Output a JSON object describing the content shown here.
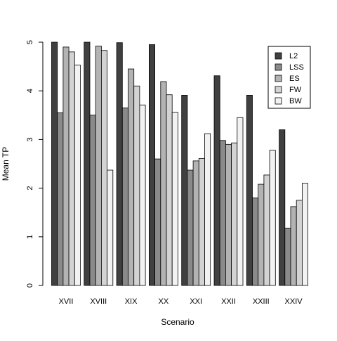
{
  "chart_data": {
    "type": "bar",
    "xlabel": "Scenario",
    "ylabel": "Mean TP",
    "ylim": [
      0,
      5
    ],
    "yticks": [
      0,
      1,
      2,
      3,
      4,
      5
    ],
    "grid": false,
    "legend_position": "top-right",
    "categories": [
      "XVII",
      "XVIII",
      "XIX",
      "XX",
      "XXI",
      "XXII",
      "XXIII",
      "XXIV"
    ],
    "series": [
      {
        "name": "L2",
        "color": "#404040",
        "values": [
          5.0,
          5.0,
          4.99,
          4.95,
          3.91,
          4.31,
          3.91,
          3.2
        ]
      },
      {
        "name": "LSS",
        "color": "#8a8a8a",
        "values": [
          3.55,
          3.5,
          3.65,
          2.6,
          2.37,
          2.98,
          1.8,
          1.18
        ]
      },
      {
        "name": "ES",
        "color": "#b3b3b3",
        "values": [
          4.9,
          4.92,
          4.45,
          4.19,
          2.56,
          2.9,
          2.08,
          1.62
        ]
      },
      {
        "name": "FW",
        "color": "#d3d3d3",
        "values": [
          4.8,
          4.83,
          4.1,
          3.92,
          2.61,
          2.93,
          2.27,
          1.75
        ]
      },
      {
        "name": "BW",
        "color": "#f2f2f2",
        "values": [
          4.53,
          2.37,
          3.71,
          3.56,
          3.12,
          3.45,
          2.78,
          2.1
        ]
      }
    ]
  }
}
